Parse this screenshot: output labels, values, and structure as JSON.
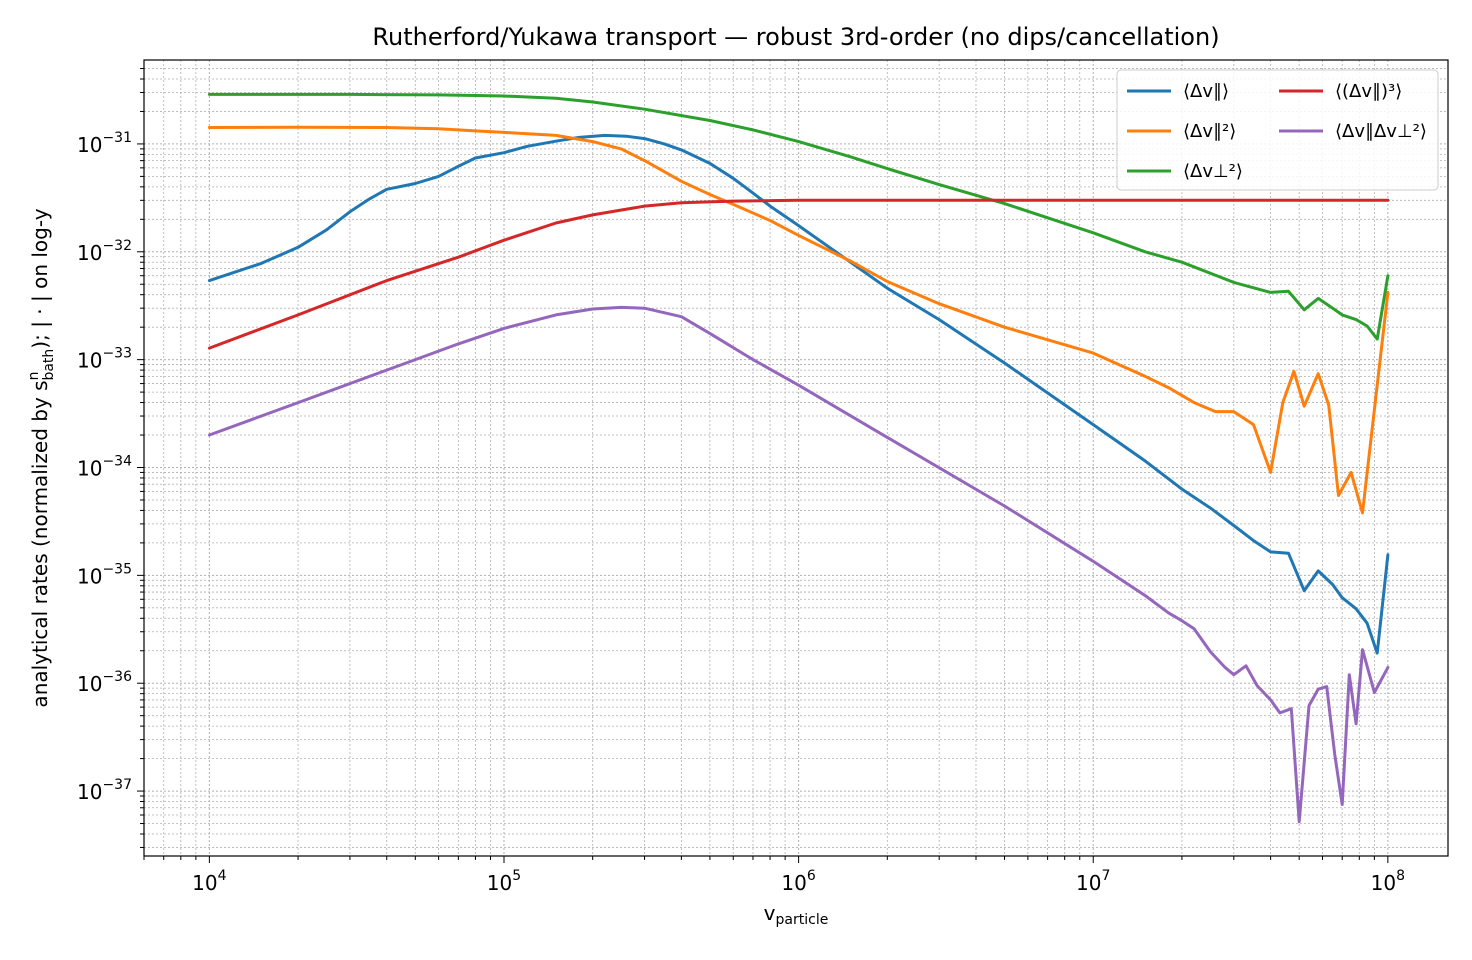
{
  "chart_data": {
    "type": "line",
    "title": "Rutherford/Yukawa transport — robust 3rd-order (no dips/cancellation)",
    "xlabel": {
      "main": "v",
      "sub": "particle"
    },
    "ylabel": {
      "pre": "analytical rates (normalized by ",
      "s": "s",
      "sup": "n",
      "sub": "bath",
      "post": "); | · | on log-y"
    },
    "xscale": "log",
    "yscale": "log",
    "xlim": [
      6000,
      160000000
    ],
    "ylim": [
      2.5e-38,
      6e-31
    ],
    "grid": true,
    "legend_position": "top-right",
    "x_ticks": [
      {
        "value": 10000,
        "base": "10",
        "exp": "4"
      },
      {
        "value": 100000,
        "base": "10",
        "exp": "5"
      },
      {
        "value": 1000000,
        "base": "10",
        "exp": "6"
      },
      {
        "value": 10000000,
        "base": "10",
        "exp": "7"
      },
      {
        "value": 100000000,
        "base": "10",
        "exp": "8"
      }
    ],
    "y_ticks": [
      {
        "value": 1e-37,
        "base": "10",
        "exp": "−37"
      },
      {
        "value": 1e-36,
        "base": "10",
        "exp": "−36"
      },
      {
        "value": 1e-35,
        "base": "10",
        "exp": "−35"
      },
      {
        "value": 1e-34,
        "base": "10",
        "exp": "−34"
      },
      {
        "value": 1e-33,
        "base": "10",
        "exp": "−33"
      },
      {
        "value": 1e-32,
        "base": "10",
        "exp": "−32"
      },
      {
        "value": 1e-31,
        "base": "10",
        "exp": "−31"
      }
    ],
    "series": [
      {
        "name": "⟨Δv∥⟩",
        "color": "#1f77b4",
        "points": [
          [
            10000.0,
            5.4e-33
          ],
          [
            15000.0,
            7.8e-33
          ],
          [
            20000.0,
            1.1e-32
          ],
          [
            25000.0,
            1.6e-32
          ],
          [
            30000.0,
            2.35e-32
          ],
          [
            35000.0,
            3.1e-32
          ],
          [
            40000.0,
            3.8e-32
          ],
          [
            50000.0,
            4.3e-32
          ],
          [
            60000.0,
            5e-32
          ],
          [
            70000.0,
            6.2e-32
          ],
          [
            80000.0,
            7.4e-32
          ],
          [
            100000.0,
            8.3e-32
          ],
          [
            120000.0,
            9.5e-32
          ],
          [
            150000.0,
            1.06e-31
          ],
          [
            180000.0,
            1.15e-31
          ],
          [
            220000.0,
            1.2e-31
          ],
          [
            260000.0,
            1.18e-31
          ],
          [
            300000.0,
            1.12e-31
          ],
          [
            350000.0,
            1e-31
          ],
          [
            400000.0,
            8.8e-32
          ],
          [
            500000.0,
            6.6e-32
          ],
          [
            600000.0,
            4.8e-32
          ],
          [
            700000.0,
            3.5e-32
          ],
          [
            800000.0,
            2.65e-32
          ],
          [
            1000000.0,
            1.75e-32
          ],
          [
            1500000.0,
            8e-33
          ],
          [
            2000000.0,
            4.6e-33
          ],
          [
            3000000.0,
            2.35e-33
          ],
          [
            5000000.0,
            9.3e-34
          ],
          [
            10000000.0,
            2.5e-34
          ],
          [
            15000000.0,
            1.15e-34
          ],
          [
            20000000.0,
            6.3e-35
          ],
          [
            25000000.0,
            4.2e-35
          ],
          [
            30000000.0,
            2.9e-35
          ],
          [
            35000000.0,
            2.1e-35
          ],
          [
            40000000.0,
            1.65e-35
          ],
          [
            46000000.0,
            1.6e-35
          ],
          [
            52000000.0,
            7.2e-36
          ],
          [
            58000000.0,
            1.1e-35
          ],
          [
            65000000.0,
            8.2e-36
          ],
          [
            70000000.0,
            6.2e-36
          ],
          [
            78000000.0,
            4.9e-36
          ],
          [
            85000000.0,
            3.6e-36
          ],
          [
            92000000.0,
            1.9e-36
          ],
          [
            100000000.0,
            1.55e-35
          ]
        ]
      },
      {
        "name": "⟨Δv∥²⟩",
        "color": "#ff7f0e",
        "points": [
          [
            10000.0,
            1.42e-31
          ],
          [
            20000.0,
            1.43e-31
          ],
          [
            40000.0,
            1.42e-31
          ],
          [
            60000.0,
            1.38e-31
          ],
          [
            80000.0,
            1.32e-31
          ],
          [
            100000.0,
            1.28e-31
          ],
          [
            150000.0,
            1.2e-31
          ],
          [
            200000.0,
            1.05e-31
          ],
          [
            250000.0,
            9e-32
          ],
          [
            300000.0,
            7e-32
          ],
          [
            400000.0,
            4.5e-32
          ],
          [
            500000.0,
            3.4e-32
          ],
          [
            600000.0,
            2.75e-32
          ],
          [
            800000.0,
            1.95e-32
          ],
          [
            1000000.0,
            1.42e-32
          ],
          [
            1500000.0,
            8.2e-33
          ],
          [
            2000000.0,
            5.3e-33
          ],
          [
            3000000.0,
            3.3e-33
          ],
          [
            5000000.0,
            2e-33
          ],
          [
            10000000.0,
            1.15e-33
          ],
          [
            15000000.0,
            7e-34
          ],
          [
            18000000.0,
            5.5e-34
          ],
          [
            22000000.0,
            4e-34
          ],
          [
            26000000.0,
            3.3e-34
          ],
          [
            30000000.0,
            3.3e-34
          ],
          [
            35000000.0,
            2.5e-34
          ],
          [
            40000000.0,
            9e-35
          ],
          [
            44000000.0,
            4e-34
          ],
          [
            48000000.0,
            7.8e-34
          ],
          [
            52000000.0,
            3.7e-34
          ],
          [
            58000000.0,
            7.4e-34
          ],
          [
            63000000.0,
            3.8e-34
          ],
          [
            68000000.0,
            5.5e-35
          ],
          [
            75000000.0,
            9e-35
          ],
          [
            82000000.0,
            3.8e-35
          ],
          [
            100000000.0,
            4.2e-33
          ]
        ]
      },
      {
        "name": "⟨Δv⊥²⟩",
        "color": "#2ca02c",
        "points": [
          [
            10000.0,
            2.88e-31
          ],
          [
            30000.0,
            2.88e-31
          ],
          [
            60000.0,
            2.85e-31
          ],
          [
            100000.0,
            2.78e-31
          ],
          [
            150000.0,
            2.65e-31
          ],
          [
            200000.0,
            2.45e-31
          ],
          [
            300000.0,
            2.1e-31
          ],
          [
            500000.0,
            1.65e-31
          ],
          [
            700000.0,
            1.35e-31
          ],
          [
            1000000.0,
            1.05e-31
          ],
          [
            1500000.0,
            7.6e-32
          ],
          [
            2000000.0,
            5.9e-32
          ],
          [
            3000000.0,
            4.2e-32
          ],
          [
            5000000.0,
            2.8e-32
          ],
          [
            10000000.0,
            1.5e-32
          ],
          [
            15000000.0,
            1e-32
          ],
          [
            20000000.0,
            8e-33
          ],
          [
            30000000.0,
            5.2e-33
          ],
          [
            40000000.0,
            4.2e-33
          ],
          [
            46000000.0,
            4.3e-33
          ],
          [
            52000000.0,
            2.9e-33
          ],
          [
            58000000.0,
            3.7e-33
          ],
          [
            65000000.0,
            3e-33
          ],
          [
            70000000.0,
            2.6e-33
          ],
          [
            78000000.0,
            2.35e-33
          ],
          [
            85000000.0,
            2.05e-33
          ],
          [
            92000000.0,
            1.55e-33
          ],
          [
            100000000.0,
            6e-33
          ]
        ]
      },
      {
        "name": "⟨(Δv∥)³⟩",
        "color": "#d62728",
        "points": [
          [
            10000.0,
            1.28e-33
          ],
          [
            20000.0,
            2.6e-33
          ],
          [
            40000.0,
            5.4e-33
          ],
          [
            70000.0,
            8.9e-33
          ],
          [
            100000.0,
            1.28e-32
          ],
          [
            150000.0,
            1.85e-32
          ],
          [
            200000.0,
            2.2e-32
          ],
          [
            300000.0,
            2.65e-32
          ],
          [
            400000.0,
            2.85e-32
          ],
          [
            600000.0,
            2.95e-32
          ],
          [
            1000000.0,
            3e-32
          ],
          [
            10000000.0,
            3e-32
          ],
          [
            100000000.0,
            3e-32
          ]
        ]
      },
      {
        "name": "⟨Δv∥Δv⊥²⟩",
        "color": "#9467bd",
        "points": [
          [
            10000.0,
            2e-34
          ],
          [
            20000.0,
            4e-34
          ],
          [
            40000.0,
            8e-34
          ],
          [
            70000.0,
            1.4e-33
          ],
          [
            100000.0,
            1.95e-33
          ],
          [
            150000.0,
            2.6e-33
          ],
          [
            200000.0,
            2.95e-33
          ],
          [
            250000.0,
            3.05e-33
          ],
          [
            300000.0,
            3e-33
          ],
          [
            400000.0,
            2.5e-33
          ],
          [
            500000.0,
            1.75e-33
          ],
          [
            700000.0,
            1e-33
          ],
          [
            1000000.0,
            5.8e-34
          ],
          [
            2000000.0,
            1.9e-34
          ],
          [
            5000000.0,
            4.4e-35
          ],
          [
            10000000.0,
            1.35e-35
          ],
          [
            15000000.0,
            6.5e-36
          ],
          [
            18000000.0,
            4.5e-36
          ],
          [
            20000000.0,
            3.8e-36
          ],
          [
            22000000.0,
            3.2e-36
          ],
          [
            25000000.0,
            1.95e-36
          ],
          [
            28000000.0,
            1.4e-36
          ],
          [
            30000000.0,
            1.2e-36
          ],
          [
            33000000.0,
            1.45e-36
          ],
          [
            36000000.0,
            9.5e-37
          ],
          [
            40000000.0,
            7e-37
          ],
          [
            43000000.0,
            5.3e-37
          ],
          [
            47000000.0,
            5.8e-37
          ],
          [
            50000000.0,
            5.2e-38
          ],
          [
            54000000.0,
            6.2e-37
          ],
          [
            58000000.0,
            8.8e-37
          ],
          [
            62000000.0,
            9.3e-37
          ],
          [
            66000000.0,
            2.2e-37
          ],
          [
            70000000.0,
            7.5e-38
          ],
          [
            74000000.0,
            1.2e-36
          ],
          [
            78000000.0,
            4.2e-37
          ],
          [
            82000000.0,
            2.05e-36
          ],
          [
            90000000.0,
            8.2e-37
          ],
          [
            100000000.0,
            1.4e-36
          ]
        ]
      }
    ]
  }
}
